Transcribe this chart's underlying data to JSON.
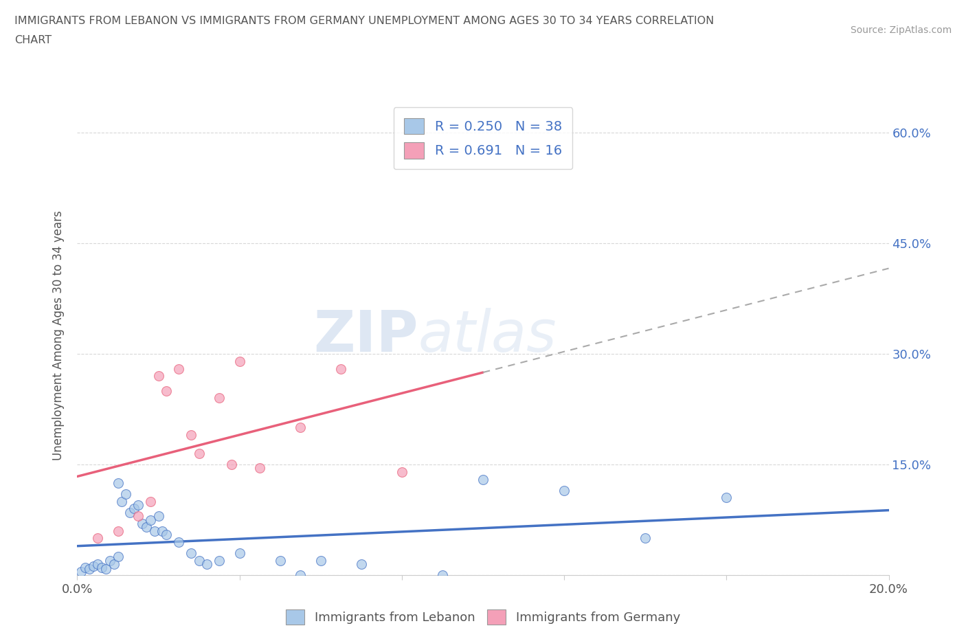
{
  "title_line1": "IMMIGRANTS FROM LEBANON VS IMMIGRANTS FROM GERMANY UNEMPLOYMENT AMONG AGES 30 TO 34 YEARS CORRELATION",
  "title_line2": "CHART",
  "source": "Source: ZipAtlas.com",
  "ylabel": "Unemployment Among Ages 30 to 34 years",
  "xmin": 0.0,
  "xmax": 0.2,
  "ymin": 0.0,
  "ymax": 0.65,
  "xticks": [
    0.0,
    0.04,
    0.08,
    0.12,
    0.16,
    0.2
  ],
  "yticks": [
    0.0,
    0.15,
    0.3,
    0.45,
    0.6
  ],
  "lebanon_color": "#a8c8e8",
  "germany_color": "#f4a0b8",
  "lebanon_line_color": "#4472c4",
  "germany_line_color": "#e8607a",
  "lebanon_R": 0.25,
  "lebanon_N": 38,
  "germany_R": 0.691,
  "germany_N": 16,
  "lebanon_x": [
    0.001,
    0.002,
    0.003,
    0.004,
    0.005,
    0.006,
    0.007,
    0.008,
    0.009,
    0.01,
    0.01,
    0.011,
    0.012,
    0.013,
    0.014,
    0.015,
    0.016,
    0.017,
    0.018,
    0.019,
    0.02,
    0.021,
    0.022,
    0.025,
    0.028,
    0.03,
    0.032,
    0.035,
    0.04,
    0.05,
    0.06,
    0.07,
    0.1,
    0.12,
    0.14,
    0.16,
    0.055,
    0.09
  ],
  "lebanon_y": [
    0.005,
    0.01,
    0.008,
    0.012,
    0.015,
    0.01,
    0.008,
    0.02,
    0.015,
    0.025,
    0.125,
    0.1,
    0.11,
    0.085,
    0.09,
    0.095,
    0.07,
    0.065,
    0.075,
    0.06,
    0.08,
    0.06,
    0.055,
    0.045,
    0.03,
    0.02,
    0.015,
    0.02,
    0.03,
    0.02,
    0.02,
    0.015,
    0.13,
    0.115,
    0.05,
    0.105,
    0.0,
    0.0
  ],
  "germany_x": [
    0.005,
    0.01,
    0.015,
    0.018,
    0.02,
    0.022,
    0.025,
    0.028,
    0.03,
    0.035,
    0.038,
    0.04,
    0.045,
    0.055,
    0.065,
    0.08
  ],
  "germany_y": [
    0.05,
    0.06,
    0.08,
    0.1,
    0.27,
    0.25,
    0.28,
    0.19,
    0.165,
    0.24,
    0.15,
    0.29,
    0.145,
    0.2,
    0.28,
    0.14
  ],
  "watermark_zip": "ZIP",
  "watermark_atlas": "atlas",
  "background_color": "#ffffff",
  "grid_color": "#d8d8d8",
  "right_axis_color": "#4472c4",
  "title_color": "#555555"
}
